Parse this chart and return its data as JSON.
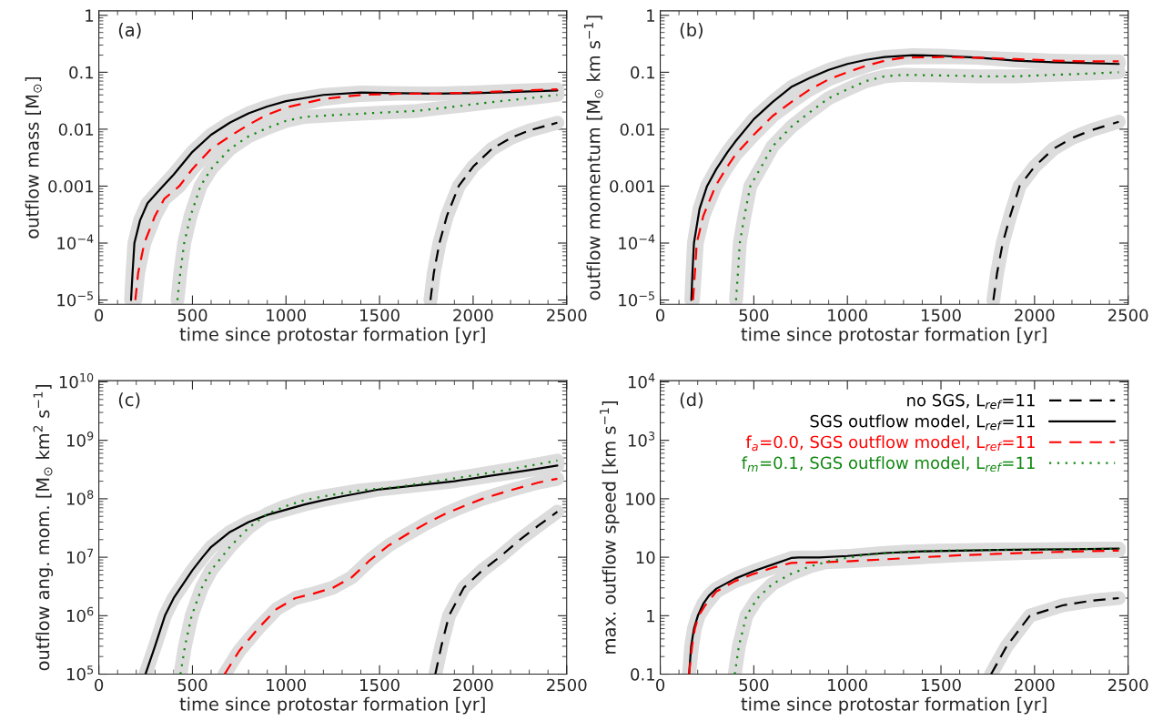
{
  "chart_data": [
    {
      "type": "line",
      "annotations": [
        "(a)"
      ],
      "xlabel": "time since protostar formation [yr]",
      "ylabel": "outflow mass [M$_{⊙}$]",
      "log": "y",
      "xlim": [
        0,
        2500
      ],
      "xticks": [
        0,
        500,
        1000,
        1500,
        2000,
        2500
      ],
      "ylim": [
        8.4e-06,
        1.2
      ],
      "yticks": [
        {
          "value": 1e-05,
          "label": "10$^{−5}$"
        },
        {
          "value": 0.0001,
          "label": "10$^{−4}$"
        },
        0.001,
        0.01,
        0.1,
        1
      ],
      "series": [
        {
          "color": "#000000",
          "line_style": "dashed",
          "x": [
            1772,
            1790,
            1820,
            1860,
            1923,
            2000,
            2100,
            2200,
            2300,
            2450
          ],
          "values": [
            1e-05,
            3e-05,
            0.0001,
            0.0003,
            0.001,
            0.0022,
            0.0045,
            0.007,
            0.0095,
            0.013
          ]
        },
        {
          "color": "#000000",
          "line_style": "solid",
          "x": [
            172,
            180,
            190,
            220,
            260,
            330,
            400,
            500,
            600,
            700,
            800,
            900,
            1000,
            1200,
            1400,
            1600,
            1800,
            2000,
            2200,
            2450
          ],
          "values": [
            1e-05,
            3e-05,
            0.0001,
            0.00025,
            0.0005,
            0.0009,
            0.0016,
            0.004,
            0.008,
            0.013,
            0.019,
            0.025,
            0.031,
            0.04,
            0.044,
            0.043,
            0.042,
            0.043,
            0.045,
            0.048
          ]
        },
        {
          "color": "#ff0000",
          "line_style": "dashed",
          "x": [
            195,
            210,
            243,
            300,
            350,
            430,
            500,
            600,
            700,
            800,
            900,
            1000,
            1200,
            1400,
            1600,
            1800,
            2000,
            2200,
            2450
          ],
          "values": [
            1e-05,
            3e-05,
            0.0001,
            0.0003,
            0.0006,
            0.001,
            0.002,
            0.0045,
            0.0075,
            0.012,
            0.018,
            0.024,
            0.034,
            0.04,
            0.042,
            0.042,
            0.044,
            0.047,
            0.05
          ]
        },
        {
          "color": "#118811",
          "line_style": "dotted",
          "x": [
            420,
            435,
            456,
            490,
            543,
            600,
            700,
            800,
            900,
            1000,
            1100,
            1300,
            1500,
            1700,
            1900,
            2100,
            2300,
            2450
          ],
          "values": [
            1e-05,
            3e-05,
            0.0001,
            0.0003,
            0.001,
            0.002,
            0.0045,
            0.0075,
            0.0105,
            0.014,
            0.0165,
            0.018,
            0.0195,
            0.021,
            0.025,
            0.03,
            0.035,
            0.04
          ]
        }
      ]
    },
    {
      "type": "line",
      "annotations": [
        "(b)"
      ],
      "xlabel": "time since protostar formation [yr]",
      "ylabel": "outflow momentum [M$_{⊙}$ km s$^{−1}$]",
      "log": "y",
      "xlim": [
        0,
        2500
      ],
      "xticks": [
        0,
        500,
        1000,
        1500,
        2000,
        2500
      ],
      "ylim": [
        8.4e-06,
        1.2
      ],
      "yticks": [
        {
          "value": 1e-05,
          "label": "10$^{−5}$"
        },
        {
          "value": 0.0001,
          "label": "10$^{−4}$"
        },
        0.001,
        0.01,
        0.1,
        1
      ],
      "series": [
        {
          "color": "#000000",
          "line_style": "dashed",
          "x": [
            1780,
            1800,
            1830,
            1870,
            1920,
            2000,
            2100,
            2200,
            2300,
            2450
          ],
          "values": [
            1e-05,
            3e-05,
            0.0001,
            0.0003,
            0.001,
            0.0022,
            0.0045,
            0.007,
            0.0095,
            0.0135
          ]
        },
        {
          "color": "#000000",
          "line_style": "solid",
          "x": [
            166,
            172,
            180,
            210,
            250,
            300,
            360,
            400,
            500,
            600,
            700,
            800,
            900,
            1000,
            1100,
            1200,
            1350,
            1500,
            1700,
            1900,
            2100,
            2300,
            2450
          ],
          "values": [
            1e-05,
            3e-05,
            0.0001,
            0.0004,
            0.001,
            0.002,
            0.004,
            0.006,
            0.015,
            0.03,
            0.055,
            0.08,
            0.11,
            0.14,
            0.165,
            0.185,
            0.2,
            0.195,
            0.18,
            0.16,
            0.15,
            0.145,
            0.14
          ]
        },
        {
          "color": "#ff0000",
          "line_style": "dashed",
          "x": [
            175,
            185,
            195,
            230,
            295,
            350,
            400,
            500,
            600,
            700,
            800,
            900,
            1000,
            1100,
            1200,
            1300,
            1500,
            1700,
            1900,
            2100,
            2300,
            2450
          ],
          "values": [
            1e-05,
            3e-05,
            0.0001,
            0.0003,
            0.001,
            0.002,
            0.0035,
            0.008,
            0.017,
            0.03,
            0.05,
            0.075,
            0.1,
            0.13,
            0.16,
            0.18,
            0.185,
            0.18,
            0.17,
            0.16,
            0.155,
            0.155
          ]
        },
        {
          "color": "#118811",
          "line_style": "dotted",
          "x": [
            405,
            415,
            425,
            450,
            481,
            550,
            600,
            700,
            800,
            900,
            1000,
            1100,
            1200,
            1300,
            1500,
            1700,
            1900,
            2100,
            2300,
            2450
          ],
          "values": [
            1e-05,
            3e-05,
            0.0001,
            0.0003,
            0.001,
            0.0025,
            0.005,
            0.011,
            0.02,
            0.035,
            0.05,
            0.07,
            0.085,
            0.09,
            0.088,
            0.085,
            0.085,
            0.09,
            0.095,
            0.1
          ]
        }
      ]
    },
    {
      "type": "line",
      "annotations": [
        "(c)"
      ],
      "xlabel": "time since protostar formation [yr]",
      "ylabel": "outflow ang. mom. [M$_{⊙}$ km$^{2}$ s$^{−1}$]",
      "log": "y",
      "xlim": [
        0,
        2500
      ],
      "xticks": [
        0,
        500,
        1000,
        1500,
        2000,
        2500
      ],
      "ylim": [
        100000.0,
        10500000000.0
      ],
      "yticks": [
        {
          "value": 100000.0,
          "label": "10$^{5}$"
        },
        {
          "value": 1000000.0,
          "label": "10$^{6}$"
        },
        {
          "value": 10000000.0,
          "label": "10$^{7}$"
        },
        {
          "value": 100000000.0,
          "label": "10$^{8}$"
        },
        {
          "value": 1000000000.0,
          "label": "10$^{9}$"
        },
        {
          "value": 10000000000.0,
          "label": "10$^{10}$"
        }
      ],
      "series": [
        {
          "color": "#000000",
          "line_style": "dashed",
          "x": [
            1798,
            1830,
            1871,
            1950,
            2050,
            2141,
            2250,
            2350,
            2450
          ],
          "values": [
            100000.0,
            300000.0,
            1000000.0,
            3000000.0,
            6000000.0,
            10000000.0,
            20000000.0,
            35000000.0,
            60000000.0
          ]
        },
        {
          "color": "#000000",
          "line_style": "solid",
          "x": [
            249,
            300,
            353,
            400,
            500,
            554,
            600,
            700,
            800,
            900,
            1000,
            1100,
            1200,
            1300,
            1500,
            1700,
            1900,
            2100,
            2300,
            2450
          ],
          "values": [
            100000.0,
            300000.0,
            1000000.0,
            2000000.0,
            6000000.0,
            10000000.0,
            15000000.0,
            27000000.0,
            40000000.0,
            53000000.0,
            65000000.0,
            80000000.0,
            95000000.0,
            110000000.0,
            145000000.0,
            170000000.0,
            200000000.0,
            250000000.0,
            310000000.0,
            370000000.0
          ]
        },
        {
          "color": "#ff0000",
          "line_style": "dashed",
          "x": [
            672,
            750,
            850,
            950,
            1050,
            1150,
            1250,
            1350,
            1450,
            1550,
            1650,
            1750,
            1850,
            1950,
            2050,
            2200,
            2350,
            2450
          ],
          "values": [
            100000.0,
            250000.0,
            600000.0,
            1300000.0,
            2000000.0,
            2400000.0,
            3000000.0,
            4500000.0,
            9000000.0,
            16000000.0,
            25000000.0,
            38000000.0,
            55000000.0,
            75000000.0,
            100000000.0,
            140000000.0,
            190000000.0,
            220000000.0
          ]
        },
        {
          "color": "#118811",
          "line_style": "dotted",
          "x": [
            436,
            460,
            496,
            550,
            600,
            700,
            800,
            900,
            1000,
            1100,
            1200,
            1400,
            1600,
            1800,
            2000,
            2200,
            2450
          ],
          "values": [
            100000.0,
            300000.0,
            1000000.0,
            3000000.0,
            6000000.0,
            15000000.0,
            32000000.0,
            55000000.0,
            75000000.0,
            95000000.0,
            110000000.0,
            140000000.0,
            160000000.0,
            200000000.0,
            250000000.0,
            320000000.0,
            450000000.0
          ]
        }
      ]
    },
    {
      "type": "line",
      "annotations": [
        "(d)"
      ],
      "xlabel": "time since protostar formation [yr]",
      "ylabel": "max. outflow speed [km s$^{−1}$]",
      "log": "y",
      "legend": "top right",
      "xlim": [
        0,
        2500
      ],
      "xticks": [
        0,
        500,
        1000,
        1500,
        2000,
        2500
      ],
      "ylim": [
        0.1,
        10500.0
      ],
      "yticks": [
        0.1,
        1,
        10,
        100,
        {
          "value": 1000.0,
          "label": "10$^{3}$"
        },
        {
          "value": 10000.0,
          "label": "10$^{4}$"
        }
      ],
      "series": [
        {
          "name": "no SGS, L$_{ref}$=11",
          "color": "#000000",
          "line_style": "dashed",
          "x": [
            1768,
            1851,
            1975,
            2150,
            2300,
            2450
          ],
          "values": [
            0.1,
            0.3,
            1,
            1.5,
            1.8,
            2
          ]
        },
        {
          "name": "SGS outflow model, L$_{ref}$=11",
          "color": "#000000",
          "line_style": "solid",
          "x": [
            154,
            165,
            180,
            201,
            230,
            260,
            300,
            400,
            500,
            600,
            700,
            740,
            850,
            1000,
            1200,
            1400,
            1600,
            1800,
            2000,
            2200,
            2450
          ],
          "values": [
            0.1,
            0.3,
            0.6,
            1,
            1.6,
            2.2,
            2.9,
            4.3,
            5.8,
            7.5,
            9.7,
            9.9,
            9.9,
            10.5,
            11.8,
            12.6,
            13,
            13.3,
            13.5,
            13.7,
            14
          ]
        },
        {
          "name": "f$_{a}$=0.0, SGS outflow model, L$_{ref}$=11",
          "color": "#ff0000",
          "line_style": "dashed",
          "x": [
            154,
            170,
            185,
            205,
            240,
            300,
            400,
            500,
            600,
            700,
            800,
            900,
            1000,
            1200,
            1400,
            1600,
            1800,
            2000,
            2200,
            2450
          ],
          "values": [
            0.1,
            0.3,
            0.6,
            1,
            1.5,
            2.6,
            3.9,
            5.2,
            6.6,
            8.0,
            8.1,
            8.3,
            8.5,
            9.2,
            10,
            10.8,
            11.4,
            12,
            12.5,
            13
          ]
        },
        {
          "name": "f$_{m}$=0.1, SGS outflow model, L$_{ref}$=11",
          "color": "#118811",
          "line_style": "dotted",
          "x": [
            398,
            420,
            460,
            520,
            600,
            700,
            800,
            900,
            1000,
            1100,
            1300,
            1500,
            1700,
            2000,
            2450
          ],
          "values": [
            0.1,
            0.3,
            1,
            2,
            3.5,
            5.2,
            7,
            8.5,
            9.8,
            11,
            12.4,
            13,
            13.3,
            13.5,
            14
          ]
        }
      ]
    }
  ]
}
